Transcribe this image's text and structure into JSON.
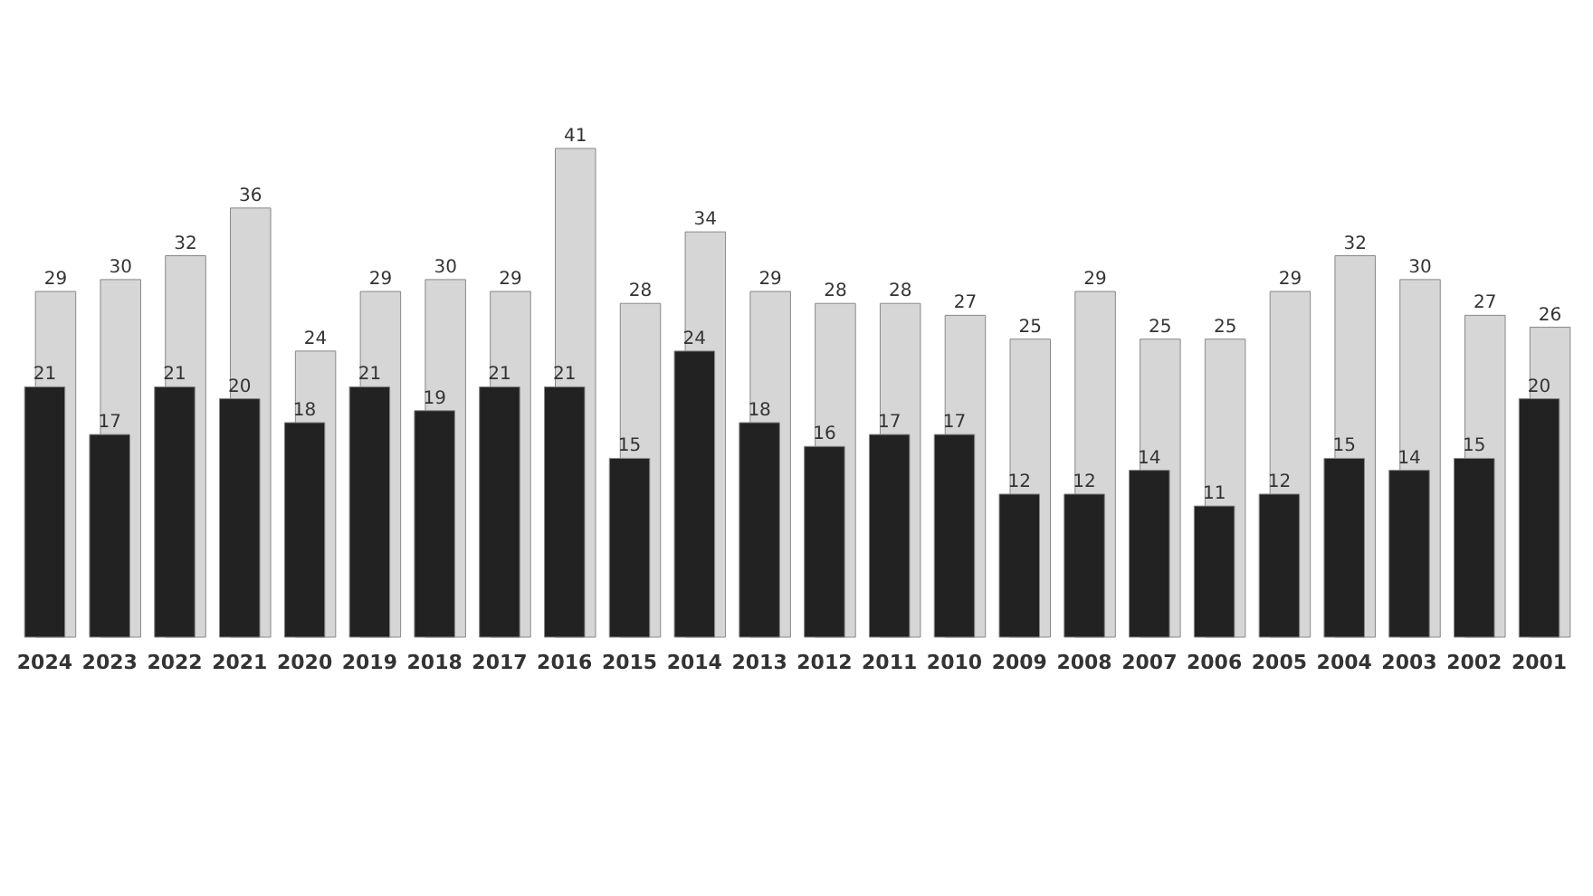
{
  "chart_data": {
    "type": "bar",
    "categories": [
      "2024",
      "2023",
      "2022",
      "2021",
      "2020",
      "2019",
      "2018",
      "2017",
      "2016",
      "2015",
      "2014",
      "2013",
      "2012",
      "2011",
      "2010",
      "2009",
      "2008",
      "2007",
      "2006",
      "2005",
      "2004",
      "2003",
      "2002",
      "2001"
    ],
    "series": [
      {
        "color": "#d6d6d6",
        "values": [
          29,
          30,
          32,
          36,
          24,
          29,
          30,
          29,
          41,
          28,
          34,
          29,
          28,
          28,
          27,
          25,
          29,
          25,
          25,
          29,
          32,
          30,
          27,
          26
        ]
      },
      {
        "color": "#222222",
        "values": [
          21,
          17,
          21,
          20,
          18,
          21,
          19,
          21,
          21,
          15,
          24,
          18,
          16,
          17,
          17,
          12,
          12,
          14,
          11,
          12,
          15,
          14,
          15,
          20
        ]
      }
    ],
    "data_labels": true,
    "grid": false
  }
}
